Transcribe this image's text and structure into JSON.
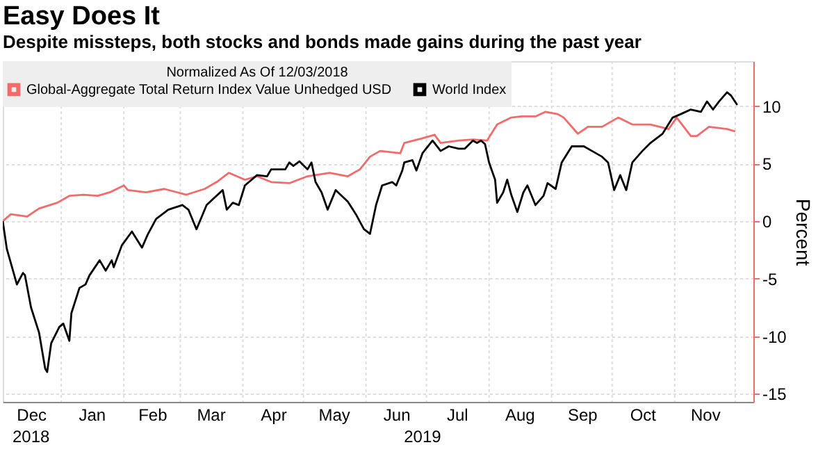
{
  "chart_data": {
    "type": "line",
    "title": "Easy Does It",
    "subtitle": "Despite missteps, both stocks and bonds made gains during the past year",
    "y2label": "Percent",
    "legend_title": "Normalized As Of 12/03/2018",
    "legend": "top",
    "grid": true,
    "marker": "none",
    "line_style": "solid",
    "xlim": [
      "2018-12-03",
      "2019-12-10"
    ],
    "y2lim": [
      -15.7,
      13.9
    ],
    "y2ticks": [
      -15,
      -10,
      -5,
      0,
      5,
      10
    ],
    "xticks": [
      {
        "value": "2018-12-17",
        "label": "Dec"
      },
      {
        "value": "2019-01-01",
        "label": null
      },
      {
        "value": "2019-01-16",
        "label": "Jan"
      },
      {
        "value": "2019-02-01",
        "label": null
      },
      {
        "value": "2019-02-15",
        "label": "Feb"
      },
      {
        "value": "2019-03-01",
        "label": null
      },
      {
        "value": "2019-03-16",
        "label": "Mar"
      },
      {
        "value": "2019-04-01",
        "label": null
      },
      {
        "value": "2019-04-16",
        "label": "Apr"
      },
      {
        "value": "2019-05-01",
        "label": null
      },
      {
        "value": "2019-05-16",
        "label": "May"
      },
      {
        "value": "2019-06-01",
        "label": null
      },
      {
        "value": "2019-06-16",
        "label": "Jun"
      },
      {
        "value": "2019-07-01",
        "label": null
      },
      {
        "value": "2019-07-16",
        "label": "Jul"
      },
      {
        "value": "2019-08-01",
        "label": null
      },
      {
        "value": "2019-08-16",
        "label": "Aug"
      },
      {
        "value": "2019-09-01",
        "label": null
      },
      {
        "value": "2019-09-16",
        "label": "Sep"
      },
      {
        "value": "2019-10-01",
        "label": null
      },
      {
        "value": "2019-10-16",
        "label": "Oct"
      },
      {
        "value": "2019-11-01",
        "label": null
      },
      {
        "value": "2019-11-16",
        "label": "Nov"
      },
      {
        "value": "2019-12-01",
        "label": null
      }
    ],
    "annotations": [
      "2018",
      "2019"
    ],
    "series": [
      {
        "name": "Global-Aggregate Total Return Index Value Unhedged USD",
        "color": "#f26b6b",
        "axis": "y2",
        "x": [
          "2018-12-03",
          "2018-12-07",
          "2018-12-15",
          "2018-12-21",
          "2018-12-30",
          "2019-01-05",
          "2019-01-12",
          "2019-01-19",
          "2019-01-25",
          "2019-02-01",
          "2019-02-03",
          "2019-02-12",
          "2019-02-21",
          "2019-03-04",
          "2019-03-13",
          "2019-03-19",
          "2019-03-25",
          "2019-04-02",
          "2019-04-08",
          "2019-04-15",
          "2019-04-24",
          "2019-05-03",
          "2019-05-14",
          "2019-05-23",
          "2019-05-29",
          "2019-06-03",
          "2019-06-08",
          "2019-06-18",
          "2019-06-20",
          "2019-06-29",
          "2019-07-05",
          "2019-07-08",
          "2019-07-17",
          "2019-07-24",
          "2019-07-31",
          "2019-08-05",
          "2019-08-12",
          "2019-08-17",
          "2019-08-24",
          "2019-08-29",
          "2019-09-04",
          "2019-09-07",
          "2019-09-14",
          "2019-09-19",
          "2019-09-26",
          "2019-10-04",
          "2019-10-11",
          "2019-10-20",
          "2019-10-29",
          "2019-11-02",
          "2019-11-09",
          "2019-11-12",
          "2019-11-18",
          "2019-11-27",
          "2019-12-01"
        ],
        "values": [
          0,
          0.6,
          0.4,
          1.1,
          1.6,
          2.2,
          2.3,
          2.2,
          2.5,
          3.1,
          2.7,
          2.5,
          2.8,
          2.3,
          2.8,
          3.4,
          4.2,
          3.6,
          3.9,
          3.4,
          3.3,
          3.9,
          4.2,
          3.9,
          4.5,
          5.6,
          6.1,
          5.9,
          6.8,
          7.2,
          7.5,
          6.8,
          7.0,
          7.1,
          7.0,
          8.4,
          9.0,
          9.1,
          9.1,
          9.5,
          9.3,
          9.0,
          7.6,
          8.2,
          8.2,
          9.0,
          8.4,
          8.4,
          8.0,
          9.0,
          7.4,
          7.4,
          8.2,
          8.0,
          7.8
        ]
      },
      {
        "name": "World Index",
        "color": "#000000",
        "axis": "y2",
        "x": [
          "2018-12-03",
          "2018-12-05",
          "2018-12-10",
          "2018-12-13",
          "2018-12-14",
          "2018-12-17",
          "2018-12-21",
          "2018-12-24",
          "2018-12-25",
          "2018-12-27",
          "2018-12-31",
          "2019-01-02",
          "2019-01-05",
          "2019-01-06",
          "2019-01-10",
          "2019-01-13",
          "2019-01-15",
          "2019-01-20",
          "2019-01-23",
          "2019-01-26",
          "2019-01-27",
          "2019-01-31",
          "2019-02-05",
          "2019-02-10",
          "2019-02-13",
          "2019-02-17",
          "2019-02-23",
          "2019-03-02",
          "2019-03-05",
          "2019-03-09",
          "2019-03-14",
          "2019-03-17",
          "2019-03-22",
          "2019-03-24",
          "2019-03-27",
          "2019-03-30",
          "2019-04-02",
          "2019-04-08",
          "2019-04-13",
          "2019-04-15",
          "2019-04-22",
          "2019-04-24",
          "2019-04-26",
          "2019-04-29",
          "2019-05-03",
          "2019-05-05",
          "2019-05-07",
          "2019-05-10",
          "2019-05-13",
          "2019-05-17",
          "2019-05-23",
          "2019-05-27",
          "2019-05-31",
          "2019-06-03",
          "2019-06-06",
          "2019-06-09",
          "2019-06-14",
          "2019-06-16",
          "2019-06-19",
          "2019-06-20",
          "2019-06-24",
          "2019-06-26",
          "2019-06-29",
          "2019-07-04",
          "2019-07-08",
          "2019-07-12",
          "2019-07-17",
          "2019-07-20",
          "2019-07-24",
          "2019-07-26",
          "2019-07-28",
          "2019-07-30",
          "2019-08-01",
          "2019-08-04",
          "2019-08-05",
          "2019-08-08",
          "2019-08-10",
          "2019-08-12",
          "2019-08-15",
          "2019-08-18",
          "2019-08-20",
          "2019-08-24",
          "2019-08-28",
          "2019-08-30",
          "2019-09-03",
          "2019-09-06",
          "2019-09-11",
          "2019-09-17",
          "2019-09-21",
          "2019-09-26",
          "2019-09-29",
          "2019-10-02",
          "2019-10-05",
          "2019-10-08",
          "2019-10-11",
          "2019-10-16",
          "2019-10-20",
          "2019-10-26",
          "2019-10-31",
          "2019-11-04",
          "2019-11-09",
          "2019-11-14",
          "2019-11-17",
          "2019-11-20",
          "2019-11-23",
          "2019-11-27",
          "2019-11-29",
          "2019-12-02"
        ],
        "values": [
          0,
          -2.4,
          -5.5,
          -4.5,
          -4.7,
          -7.5,
          -9.7,
          -12.8,
          -13.1,
          -10.6,
          -9.2,
          -8.9,
          -10.4,
          -8,
          -5.8,
          -5.5,
          -4.7,
          -3.4,
          -4.3,
          -3.4,
          -4,
          -2.1,
          -0.9,
          -2.3,
          -1.1,
          0.2,
          1,
          1.4,
          1,
          -0.7,
          1.4,
          1.9,
          2.7,
          1,
          1.6,
          1.4,
          3.1,
          4,
          3.9,
          4.5,
          4.5,
          5.1,
          4.8,
          5.2,
          4.5,
          5.1,
          3.4,
          2.5,
          1,
          2.7,
          1.7,
          0.6,
          -0.7,
          -1.1,
          1.4,
          3.1,
          3.4,
          3.1,
          4.4,
          5.1,
          5.3,
          4.4,
          5.9,
          7,
          6.1,
          6.5,
          6.3,
          6.3,
          7,
          6.8,
          7,
          6.7,
          5.1,
          3.6,
          1.6,
          2.5,
          3.6,
          2.3,
          0.8,
          2.5,
          3.1,
          1.4,
          2.2,
          3.3,
          2.8,
          5.1,
          6.5,
          6.5,
          6.1,
          5.6,
          5.1,
          2.7,
          4,
          2.7,
          5.1,
          6.1,
          6.8,
          7.6,
          9,
          9.3,
          9.7,
          9.5,
          10.4,
          9.7,
          10.4,
          11.2,
          10.9,
          10.1
        ]
      }
    ]
  }
}
